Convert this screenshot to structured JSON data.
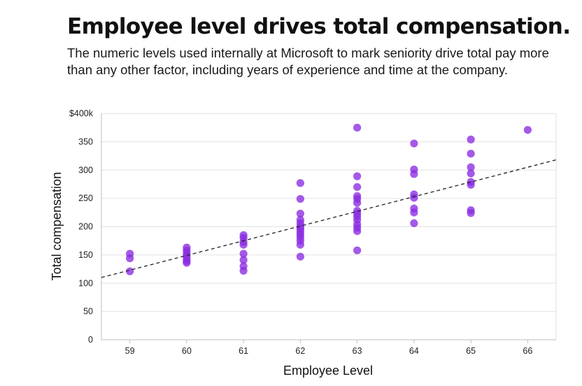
{
  "header": {
    "title": "Employee level drives total compensation.",
    "subtitle": "The numeric levels used internally at Microsoft to mark seniority drive total pay more than any other factor, including years of experience and time at the company."
  },
  "colors": {
    "point": "#8a2be2",
    "grid": "#e2e2e2",
    "trend": "#222222",
    "axis": "#bdbdbd"
  },
  "chart_data": {
    "type": "scatter",
    "title": "Employee level drives total compensation.",
    "xlabel": "Employee Level",
    "ylabel": "Total compensation",
    "xlim": [
      58.5,
      66.5
    ],
    "ylim": [
      0,
      400
    ],
    "x_ticks": [
      59,
      60,
      61,
      62,
      63,
      64,
      65,
      66
    ],
    "y_ticks": [
      0,
      50,
      100,
      150,
      200,
      250,
      300,
      350,
      400
    ],
    "y_tick_labels": [
      "0",
      "50",
      "100",
      "150",
      "200",
      "250",
      "300",
      "350",
      "$400k"
    ],
    "grid": true,
    "trendline": {
      "style": "dashed",
      "x": [
        58.5,
        66.5
      ],
      "y": [
        110,
        318
      ]
    },
    "points": [
      {
        "x": 59,
        "y": 152
      },
      {
        "x": 59,
        "y": 144
      },
      {
        "x": 59,
        "y": 121
      },
      {
        "x": 60,
        "y": 163
      },
      {
        "x": 60,
        "y": 158
      },
      {
        "x": 60,
        "y": 153
      },
      {
        "x": 60,
        "y": 148
      },
      {
        "x": 60,
        "y": 143
      },
      {
        "x": 60,
        "y": 139
      },
      {
        "x": 60,
        "y": 136
      },
      {
        "x": 61,
        "y": 185
      },
      {
        "x": 61,
        "y": 180
      },
      {
        "x": 61,
        "y": 173
      },
      {
        "x": 61,
        "y": 168
      },
      {
        "x": 61,
        "y": 152
      },
      {
        "x": 61,
        "y": 141
      },
      {
        "x": 61,
        "y": 130
      },
      {
        "x": 61,
        "y": 122
      },
      {
        "x": 62,
        "y": 277
      },
      {
        "x": 62,
        "y": 249
      },
      {
        "x": 62,
        "y": 223
      },
      {
        "x": 62,
        "y": 212
      },
      {
        "x": 62,
        "y": 206
      },
      {
        "x": 62,
        "y": 200
      },
      {
        "x": 62,
        "y": 196
      },
      {
        "x": 62,
        "y": 191
      },
      {
        "x": 62,
        "y": 186
      },
      {
        "x": 62,
        "y": 181
      },
      {
        "x": 62,
        "y": 175
      },
      {
        "x": 62,
        "y": 168
      },
      {
        "x": 62,
        "y": 147
      },
      {
        "x": 63,
        "y": 375
      },
      {
        "x": 63,
        "y": 289
      },
      {
        "x": 63,
        "y": 270
      },
      {
        "x": 63,
        "y": 254
      },
      {
        "x": 63,
        "y": 249
      },
      {
        "x": 63,
        "y": 242
      },
      {
        "x": 63,
        "y": 228
      },
      {
        "x": 63,
        "y": 223
      },
      {
        "x": 63,
        "y": 218
      },
      {
        "x": 63,
        "y": 212
      },
      {
        "x": 63,
        "y": 204
      },
      {
        "x": 63,
        "y": 198
      },
      {
        "x": 63,
        "y": 192
      },
      {
        "x": 63,
        "y": 158
      },
      {
        "x": 64,
        "y": 347
      },
      {
        "x": 64,
        "y": 301
      },
      {
        "x": 64,
        "y": 293
      },
      {
        "x": 64,
        "y": 257
      },
      {
        "x": 64,
        "y": 251
      },
      {
        "x": 64,
        "y": 232
      },
      {
        "x": 64,
        "y": 225
      },
      {
        "x": 64,
        "y": 206
      },
      {
        "x": 65,
        "y": 354
      },
      {
        "x": 65,
        "y": 329
      },
      {
        "x": 65,
        "y": 305
      },
      {
        "x": 65,
        "y": 294
      },
      {
        "x": 65,
        "y": 279
      },
      {
        "x": 65,
        "y": 274
      },
      {
        "x": 65,
        "y": 229
      },
      {
        "x": 65,
        "y": 224
      },
      {
        "x": 66,
        "y": 371
      }
    ]
  }
}
